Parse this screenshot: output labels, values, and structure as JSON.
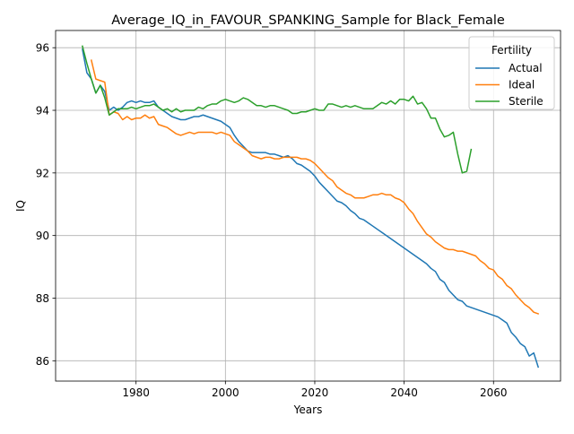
{
  "chart_data": {
    "type": "line",
    "title": "Average_IQ_in_FAVOUR_SPANKING_Sample for Black_Female",
    "xlabel": "Years",
    "ylabel": "IQ",
    "xlim": [
      1962,
      2075
    ],
    "ylim": [
      85.35,
      96.55
    ],
    "xticks": [
      1980,
      2000,
      2020,
      2040,
      2060
    ],
    "yticks": [
      86,
      88,
      90,
      92,
      94,
      96
    ],
    "grid": true,
    "legend": {
      "title": "Fertility",
      "placement": "top-right"
    },
    "series": [
      {
        "name": "Actual",
        "color": "#1f77b4",
        "points": [
          [
            1968,
            95.95
          ],
          [
            1969,
            95.2
          ],
          [
            1970,
            95.0
          ],
          [
            1971,
            94.55
          ],
          [
            1972,
            94.8
          ],
          [
            1973,
            94.6
          ],
          [
            1974,
            94.0
          ],
          [
            1975,
            94.1
          ],
          [
            1976,
            94.0
          ],
          [
            1977,
            94.1
          ],
          [
            1978,
            94.25
          ],
          [
            1979,
            94.3
          ],
          [
            1980,
            94.25
          ],
          [
            1981,
            94.3
          ],
          [
            1982,
            94.25
          ],
          [
            1983,
            94.25
          ],
          [
            1984,
            94.3
          ],
          [
            1985,
            94.1
          ],
          [
            1986,
            94.0
          ],
          [
            1987,
            93.9
          ],
          [
            1988,
            93.8
          ],
          [
            1989,
            93.75
          ],
          [
            1990,
            93.7
          ],
          [
            1991,
            93.7
          ],
          [
            1992,
            93.75
          ],
          [
            1993,
            93.8
          ],
          [
            1994,
            93.8
          ],
          [
            1995,
            93.85
          ],
          [
            1996,
            93.8
          ],
          [
            1997,
            93.75
          ],
          [
            1998,
            93.7
          ],
          [
            1999,
            93.65
          ],
          [
            2000,
            93.55
          ],
          [
            2001,
            93.45
          ],
          [
            2002,
            93.2
          ],
          [
            2003,
            93.0
          ],
          [
            2004,
            92.85
          ],
          [
            2005,
            92.7
          ],
          [
            2006,
            92.65
          ],
          [
            2007,
            92.65
          ],
          [
            2008,
            92.65
          ],
          [
            2009,
            92.65
          ],
          [
            2010,
            92.6
          ],
          [
            2011,
            92.6
          ],
          [
            2012,
            92.55
          ],
          [
            2013,
            92.5
          ],
          [
            2014,
            92.55
          ],
          [
            2015,
            92.45
          ],
          [
            2016,
            92.3
          ],
          [
            2017,
            92.25
          ],
          [
            2018,
            92.15
          ],
          [
            2019,
            92.05
          ],
          [
            2020,
            91.9
          ],
          [
            2021,
            91.7
          ],
          [
            2022,
            91.55
          ],
          [
            2023,
            91.4
          ],
          [
            2024,
            91.25
          ],
          [
            2025,
            91.1
          ],
          [
            2026,
            91.05
          ],
          [
            2027,
            90.95
          ],
          [
            2028,
            90.8
          ],
          [
            2029,
            90.7
          ],
          [
            2030,
            90.55
          ],
          [
            2031,
            90.5
          ],
          [
            2032,
            90.4
          ],
          [
            2033,
            90.3
          ],
          [
            2034,
            90.2
          ],
          [
            2035,
            90.1
          ],
          [
            2036,
            90.0
          ],
          [
            2037,
            89.9
          ],
          [
            2038,
            89.8
          ],
          [
            2039,
            89.7
          ],
          [
            2040,
            89.6
          ],
          [
            2041,
            89.5
          ],
          [
            2042,
            89.4
          ],
          [
            2043,
            89.3
          ],
          [
            2044,
            89.2
          ],
          [
            2045,
            89.1
          ],
          [
            2046,
            88.95
          ],
          [
            2047,
            88.85
          ],
          [
            2048,
            88.6
          ],
          [
            2049,
            88.5
          ],
          [
            2050,
            88.25
          ],
          [
            2051,
            88.1
          ],
          [
            2052,
            87.95
          ],
          [
            2053,
            87.9
          ],
          [
            2054,
            87.75
          ],
          [
            2055,
            87.7
          ],
          [
            2056,
            87.65
          ],
          [
            2057,
            87.6
          ],
          [
            2058,
            87.55
          ],
          [
            2059,
            87.5
          ],
          [
            2060,
            87.45
          ],
          [
            2061,
            87.4
          ],
          [
            2062,
            87.3
          ],
          [
            2063,
            87.2
          ],
          [
            2064,
            86.9
          ],
          [
            2065,
            86.75
          ],
          [
            2066,
            86.55
          ],
          [
            2067,
            86.45
          ],
          [
            2068,
            86.15
          ],
          [
            2069,
            86.25
          ],
          [
            2070,
            85.8
          ]
        ]
      },
      {
        "name": "Ideal",
        "color": "#ff7f0e",
        "points": [
          [
            1970,
            95.6
          ],
          [
            1971,
            95.0
          ],
          [
            1972,
            94.95
          ],
          [
            1973,
            94.9
          ],
          [
            1974,
            93.85
          ],
          [
            1975,
            93.95
          ],
          [
            1976,
            93.9
          ],
          [
            1977,
            93.7
          ],
          [
            1978,
            93.8
          ],
          [
            1979,
            93.7
          ],
          [
            1980,
            93.75
          ],
          [
            1981,
            93.75
          ],
          [
            1982,
            93.85
          ],
          [
            1983,
            93.75
          ],
          [
            1984,
            93.8
          ],
          [
            1985,
            93.55
          ],
          [
            1986,
            93.5
          ],
          [
            1987,
            93.45
          ],
          [
            1988,
            93.35
          ],
          [
            1989,
            93.25
          ],
          [
            1990,
            93.2
          ],
          [
            1991,
            93.25
          ],
          [
            1992,
            93.3
          ],
          [
            1993,
            93.25
          ],
          [
            1994,
            93.3
          ],
          [
            1995,
            93.3
          ],
          [
            1996,
            93.3
          ],
          [
            1997,
            93.3
          ],
          [
            1998,
            93.25
          ],
          [
            1999,
            93.3
          ],
          [
            2000,
            93.25
          ],
          [
            2001,
            93.2
          ],
          [
            2002,
            93.0
          ],
          [
            2003,
            92.9
          ],
          [
            2004,
            92.8
          ],
          [
            2005,
            92.7
          ],
          [
            2006,
            92.55
          ],
          [
            2007,
            92.5
          ],
          [
            2008,
            92.45
          ],
          [
            2009,
            92.5
          ],
          [
            2010,
            92.5
          ],
          [
            2011,
            92.45
          ],
          [
            2012,
            92.45
          ],
          [
            2013,
            92.5
          ],
          [
            2014,
            92.5
          ],
          [
            2015,
            92.5
          ],
          [
            2016,
            92.5
          ],
          [
            2017,
            92.45
          ],
          [
            2018,
            92.45
          ],
          [
            2019,
            92.4
          ],
          [
            2020,
            92.3
          ],
          [
            2021,
            92.15
          ],
          [
            2022,
            92.0
          ],
          [
            2023,
            91.85
          ],
          [
            2024,
            91.75
          ],
          [
            2025,
            91.55
          ],
          [
            2026,
            91.45
          ],
          [
            2027,
            91.35
          ],
          [
            2028,
            91.3
          ],
          [
            2029,
            91.2
          ],
          [
            2030,
            91.2
          ],
          [
            2031,
            91.2
          ],
          [
            2032,
            91.25
          ],
          [
            2033,
            91.3
          ],
          [
            2034,
            91.3
          ],
          [
            2035,
            91.35
          ],
          [
            2036,
            91.3
          ],
          [
            2037,
            91.3
          ],
          [
            2038,
            91.2
          ],
          [
            2039,
            91.15
          ],
          [
            2040,
            91.05
          ],
          [
            2041,
            90.85
          ],
          [
            2042,
            90.7
          ],
          [
            2043,
            90.45
          ],
          [
            2044,
            90.25
          ],
          [
            2045,
            90.05
          ],
          [
            2046,
            89.95
          ],
          [
            2047,
            89.8
          ],
          [
            2048,
            89.7
          ],
          [
            2049,
            89.6
          ],
          [
            2050,
            89.55
          ],
          [
            2051,
            89.55
          ],
          [
            2052,
            89.5
          ],
          [
            2053,
            89.5
          ],
          [
            2054,
            89.45
          ],
          [
            2055,
            89.4
          ],
          [
            2056,
            89.35
          ],
          [
            2057,
            89.2
          ],
          [
            2058,
            89.1
          ],
          [
            2059,
            88.95
          ],
          [
            2060,
            88.9
          ],
          [
            2061,
            88.7
          ],
          [
            2062,
            88.6
          ],
          [
            2063,
            88.4
          ],
          [
            2064,
            88.3
          ],
          [
            2065,
            88.1
          ],
          [
            2066,
            87.95
          ],
          [
            2067,
            87.8
          ],
          [
            2068,
            87.7
          ],
          [
            2069,
            87.55
          ],
          [
            2070,
            87.5
          ]
        ]
      },
      {
        "name": "Sterile",
        "color": "#2ca02c",
        "points": [
          [
            1968,
            96.05
          ],
          [
            1969,
            95.5
          ],
          [
            1970,
            95.0
          ],
          [
            1971,
            94.55
          ],
          [
            1972,
            94.8
          ],
          [
            1973,
            94.4
          ],
          [
            1974,
            93.85
          ],
          [
            1975,
            93.95
          ],
          [
            1976,
            94.05
          ],
          [
            1977,
            94.05
          ],
          [
            1978,
            94.05
          ],
          [
            1979,
            94.1
          ],
          [
            1980,
            94.05
          ],
          [
            1981,
            94.1
          ],
          [
            1982,
            94.15
          ],
          [
            1983,
            94.15
          ],
          [
            1984,
            94.2
          ],
          [
            1985,
            94.1
          ],
          [
            1986,
            94.0
          ],
          [
            1987,
            94.05
          ],
          [
            1988,
            93.95
          ],
          [
            1989,
            94.05
          ],
          [
            1990,
            93.95
          ],
          [
            1991,
            94.0
          ],
          [
            1992,
            94.0
          ],
          [
            1993,
            94.0
          ],
          [
            1994,
            94.1
          ],
          [
            1995,
            94.05
          ],
          [
            1996,
            94.15
          ],
          [
            1997,
            94.2
          ],
          [
            1998,
            94.2
          ],
          [
            1999,
            94.3
          ],
          [
            2000,
            94.35
          ],
          [
            2001,
            94.3
          ],
          [
            2002,
            94.25
          ],
          [
            2003,
            94.3
          ],
          [
            2004,
            94.4
          ],
          [
            2005,
            94.35
          ],
          [
            2006,
            94.25
          ],
          [
            2007,
            94.15
          ],
          [
            2008,
            94.15
          ],
          [
            2009,
            94.1
          ],
          [
            2010,
            94.15
          ],
          [
            2011,
            94.15
          ],
          [
            2012,
            94.1
          ],
          [
            2013,
            94.05
          ],
          [
            2014,
            94.0
          ],
          [
            2015,
            93.9
          ],
          [
            2016,
            93.9
          ],
          [
            2017,
            93.95
          ],
          [
            2018,
            93.95
          ],
          [
            2019,
            94.0
          ],
          [
            2020,
            94.05
          ],
          [
            2021,
            94.0
          ],
          [
            2022,
            94.0
          ],
          [
            2023,
            94.2
          ],
          [
            2024,
            94.2
          ],
          [
            2025,
            94.15
          ],
          [
            2026,
            94.1
          ],
          [
            2027,
            94.15
          ],
          [
            2028,
            94.1
          ],
          [
            2029,
            94.15
          ],
          [
            2030,
            94.1
          ],
          [
            2031,
            94.05
          ],
          [
            2032,
            94.05
          ],
          [
            2033,
            94.05
          ],
          [
            2034,
            94.15
          ],
          [
            2035,
            94.25
          ],
          [
            2036,
            94.2
          ],
          [
            2037,
            94.3
          ],
          [
            2038,
            94.2
          ],
          [
            2039,
            94.35
          ],
          [
            2040,
            94.35
          ],
          [
            2041,
            94.3
          ],
          [
            2042,
            94.45
          ],
          [
            2043,
            94.2
          ],
          [
            2044,
            94.25
          ],
          [
            2045,
            94.05
          ],
          [
            2046,
            93.75
          ],
          [
            2047,
            93.75
          ],
          [
            2048,
            93.4
          ],
          [
            2049,
            93.15
          ],
          [
            2050,
            93.2
          ],
          [
            2051,
            93.3
          ],
          [
            2052,
            92.6
          ],
          [
            2053,
            92.0
          ],
          [
            2054,
            92.05
          ],
          [
            2055,
            92.75
          ]
        ]
      }
    ]
  }
}
